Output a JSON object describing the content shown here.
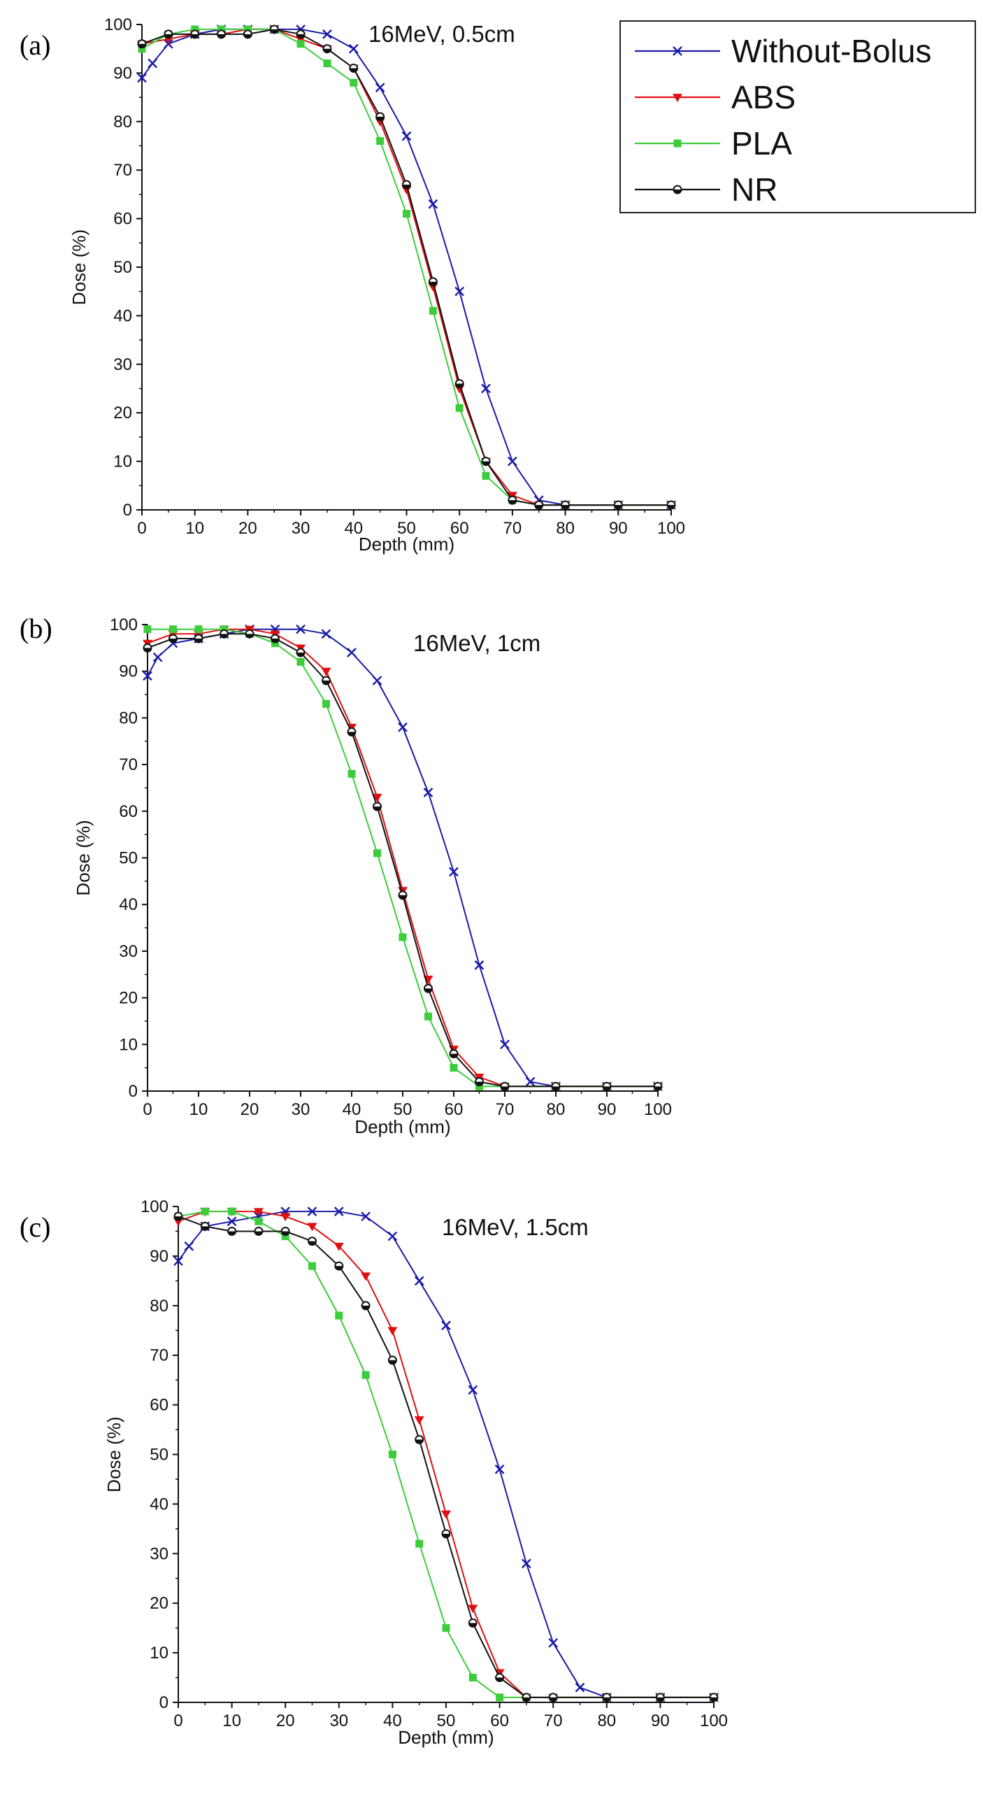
{
  "figure": {
    "legend": [
      "Without-Bolus",
      "ABS",
      "PLA",
      "NR"
    ],
    "series_colors": {
      "Without-Bolus": "#1a1aa8",
      "ABS": "#e01010",
      "PLA": "#3ccd3c",
      "NR": "#111111"
    }
  },
  "chart_data": [
    {
      "type": "line",
      "panel_label": "(a)",
      "title": "16MeV, 0.5cm",
      "xlabel": "Depth (mm)",
      "ylabel": "Dose (%)",
      "xlim": [
        0,
        100
      ],
      "ylim": [
        0,
        100
      ],
      "xticks": [
        "0",
        "10",
        "20",
        "30",
        "40",
        "50",
        "60",
        "70",
        "80",
        "90",
        "100"
      ],
      "yticks": [
        "0",
        "10",
        "20",
        "30",
        "40",
        "50",
        "60",
        "70",
        "80",
        "90",
        "100"
      ],
      "series": [
        {
          "name": "Without-Bolus",
          "x": [
            0,
            2,
            5,
            10,
            15,
            20,
            25,
            30,
            35,
            40,
            45,
            50,
            55,
            60,
            65,
            70,
            75,
            80,
            90,
            100
          ],
          "y": [
            89,
            92,
            96,
            98,
            99,
            99,
            99,
            99,
            98,
            95,
            87,
            77,
            63,
            45,
            25,
            10,
            2,
            1,
            1,
            1
          ]
        },
        {
          "name": "ABS",
          "x": [
            0,
            5,
            10,
            15,
            20,
            25,
            30,
            35,
            40,
            45,
            50,
            55,
            60,
            65,
            70,
            75,
            80,
            90,
            100
          ],
          "y": [
            96,
            97,
            98,
            98,
            99,
            99,
            97,
            95,
            91,
            80,
            66,
            46,
            25,
            10,
            3,
            1,
            1,
            1,
            1
          ]
        },
        {
          "name": "PLA",
          "x": [
            0,
            5,
            10,
            15,
            20,
            25,
            30,
            35,
            40,
            45,
            50,
            55,
            60,
            65,
            70,
            75,
            80,
            90,
            100
          ],
          "y": [
            95,
            98,
            99,
            99,
            99,
            99,
            96,
            92,
            88,
            76,
            61,
            41,
            21,
            7,
            2,
            1,
            1,
            1,
            1
          ]
        },
        {
          "name": "NR",
          "x": [
            0,
            5,
            10,
            15,
            20,
            25,
            30,
            35,
            40,
            45,
            50,
            55,
            60,
            65,
            70,
            75,
            80,
            90,
            100
          ],
          "y": [
            96,
            98,
            98,
            98,
            98,
            99,
            98,
            95,
            91,
            81,
            67,
            47,
            26,
            10,
            2,
            1,
            1,
            1,
            1
          ]
        }
      ]
    },
    {
      "type": "line",
      "panel_label": "(b)",
      "title": "16MeV, 1cm",
      "xlabel": "Depth (mm)",
      "ylabel": "Dose (%)",
      "xlim": [
        0,
        100
      ],
      "ylim": [
        0,
        100
      ],
      "xticks": [
        "0",
        "10",
        "20",
        "30",
        "40",
        "50",
        "60",
        "70",
        "80",
        "90",
        "100"
      ],
      "yticks": [
        "0",
        "10",
        "20",
        "30",
        "40",
        "50",
        "60",
        "70",
        "80",
        "90",
        "100"
      ],
      "series": [
        {
          "name": "Without-Bolus",
          "x": [
            0,
            2,
            5,
            10,
            15,
            20,
            25,
            30,
            35,
            40,
            45,
            50,
            55,
            60,
            65,
            70,
            75,
            80,
            90,
            100
          ],
          "y": [
            89,
            93,
            96,
            97,
            98,
            99,
            99,
            99,
            98,
            94,
            88,
            78,
            64,
            47,
            27,
            10,
            2,
            1,
            1,
            1
          ]
        },
        {
          "name": "ABS",
          "x": [
            0,
            5,
            10,
            15,
            20,
            25,
            30,
            35,
            40,
            45,
            50,
            55,
            60,
            65,
            70,
            80,
            90,
            100
          ],
          "y": [
            96,
            98,
            98,
            99,
            99,
            98,
            95,
            90,
            78,
            63,
            43,
            24,
            9,
            3,
            1,
            1,
            1,
            1
          ]
        },
        {
          "name": "PLA",
          "x": [
            0,
            5,
            10,
            15,
            20,
            25,
            30,
            35,
            40,
            45,
            50,
            55,
            60,
            65,
            70,
            80,
            90,
            100
          ],
          "y": [
            99,
            99,
            99,
            99,
            98,
            96,
            92,
            83,
            68,
            51,
            33,
            16,
            5,
            1,
            1,
            1,
            1,
            1
          ]
        },
        {
          "name": "NR",
          "x": [
            0,
            5,
            10,
            15,
            20,
            25,
            30,
            35,
            40,
            45,
            50,
            55,
            60,
            65,
            70,
            80,
            90,
            100
          ],
          "y": [
            95,
            97,
            97,
            98,
            98,
            97,
            94,
            88,
            77,
            61,
            42,
            22,
            8,
            2,
            1,
            1,
            1,
            1
          ]
        }
      ]
    },
    {
      "type": "line",
      "panel_label": "(c)",
      "title": "16MeV, 1.5cm",
      "xlabel": "Depth (mm)",
      "ylabel": "Dose (%)",
      "xlim": [
        0,
        100
      ],
      "ylim": [
        0,
        100
      ],
      "xticks": [
        "0",
        "10",
        "20",
        "30",
        "40",
        "50",
        "60",
        "70",
        "80",
        "90",
        "100"
      ],
      "yticks": [
        "0",
        "10",
        "20",
        "30",
        "40",
        "50",
        "60",
        "70",
        "80",
        "90",
        "100"
      ],
      "series": [
        {
          "name": "Without-Bolus",
          "x": [
            0,
            2,
            5,
            10,
            15,
            20,
            25,
            30,
            35,
            40,
            45,
            50,
            55,
            60,
            65,
            70,
            75,
            80,
            90,
            100
          ],
          "y": [
            89,
            92,
            96,
            97,
            98,
            99,
            99,
            99,
            98,
            94,
            85,
            76,
            63,
            47,
            28,
            12,
            3,
            1,
            1,
            1
          ]
        },
        {
          "name": "ABS",
          "x": [
            0,
            5,
            10,
            15,
            20,
            25,
            30,
            35,
            40,
            45,
            50,
            55,
            60,
            65,
            70,
            80,
            90,
            100
          ],
          "y": [
            97,
            99,
            99,
            99,
            98,
            96,
            92,
            86,
            75,
            57,
            38,
            19,
            6,
            1,
            1,
            1,
            1,
            1
          ]
        },
        {
          "name": "PLA",
          "x": [
            0,
            5,
            10,
            15,
            20,
            25,
            30,
            35,
            40,
            45,
            50,
            55,
            60,
            65,
            70,
            80,
            90,
            100
          ],
          "y": [
            98,
            99,
            99,
            97,
            94,
            88,
            78,
            66,
            50,
            32,
            15,
            5,
            1,
            1,
            1,
            1,
            1,
            1
          ]
        },
        {
          "name": "NR",
          "x": [
            0,
            5,
            10,
            15,
            20,
            25,
            30,
            35,
            40,
            45,
            50,
            55,
            60,
            65,
            70,
            80,
            90,
            100
          ],
          "y": [
            98,
            96,
            95,
            95,
            95,
            93,
            88,
            80,
            69,
            53,
            34,
            16,
            5,
            1,
            1,
            1,
            1,
            1
          ]
        }
      ]
    }
  ]
}
